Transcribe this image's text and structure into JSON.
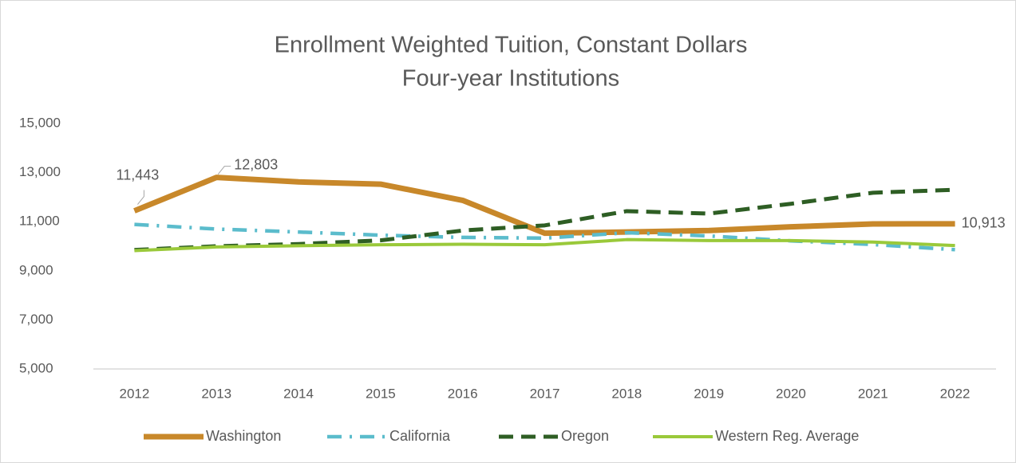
{
  "chart_data": {
    "type": "line",
    "title": [
      "Enrollment Weighted Tuition, Constant Dollars",
      "Four-year Institutions"
    ],
    "x": [
      "2012",
      "2013",
      "2014",
      "2015",
      "2016",
      "2017",
      "2018",
      "2019",
      "2020",
      "2021",
      "2022"
    ],
    "series": [
      {
        "name": "Washington",
        "color": "#c8882a",
        "dash": "solid",
        "values": [
          11443,
          12803,
          12620,
          12530,
          11870,
          10530,
          10580,
          10640,
          10790,
          10910,
          10913
        ],
        "value_labels": [
          "11,443",
          "12,803",
          null,
          null,
          null,
          null,
          null,
          null,
          null,
          null,
          "10,913"
        ]
      },
      {
        "name": "California",
        "color": "#5bbccc",
        "dash": "dashdot",
        "values": [
          10890,
          10700,
          10580,
          10450,
          10360,
          10330,
          10550,
          10420,
          10220,
          10070,
          9860
        ]
      },
      {
        "name": "Oregon",
        "color": "#2e5e24",
        "dash": "dash",
        "values": [
          9850,
          10000,
          10090,
          10240,
          10640,
          10850,
          11430,
          11330,
          11730,
          12180,
          12300
        ]
      },
      {
        "name": "Western Reg. Average",
        "color": "#9ac93a",
        "dash": "solid",
        "values": [
          9820,
          9970,
          10020,
          10060,
          10080,
          10060,
          10270,
          10230,
          10230,
          10170,
          10030
        ]
      }
    ],
    "ylim": [
      5000,
      15000
    ],
    "yticks": [
      {
        "value": 5000,
        "label": "5,000"
      },
      {
        "value": 7000,
        "label": "7,000"
      },
      {
        "value": 9000,
        "label": "9,000"
      },
      {
        "value": 11000,
        "label": "11,000"
      },
      {
        "value": 13000,
        "label": "13,000"
      },
      {
        "value": 15000,
        "label": "15,000"
      }
    ],
    "grid": false,
    "legend": "bottom"
  }
}
